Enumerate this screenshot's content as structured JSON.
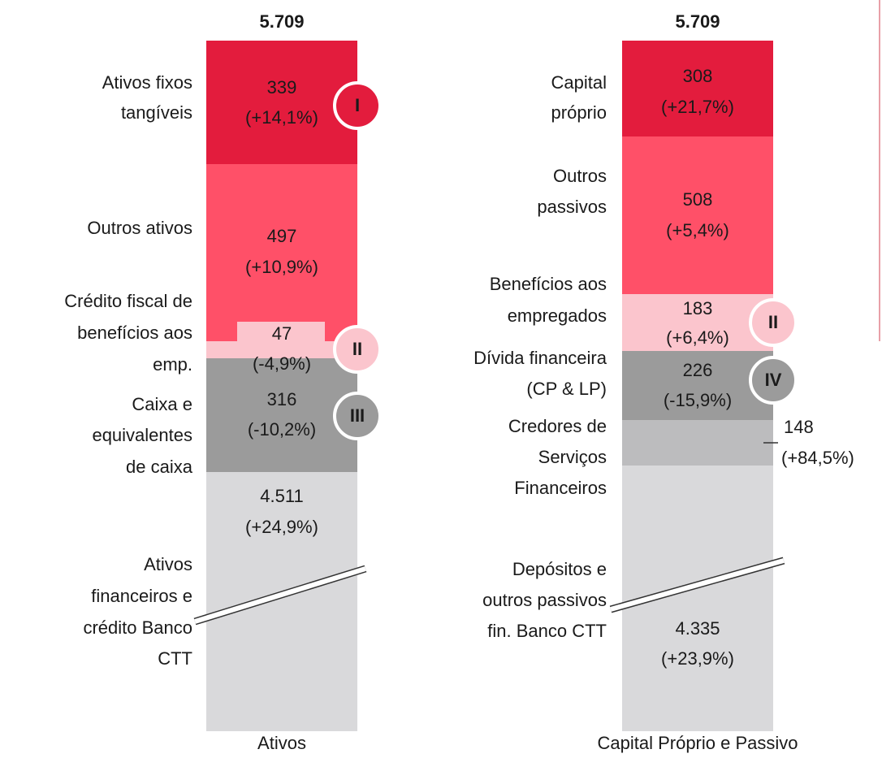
{
  "columns": [
    {
      "total": "5.709",
      "label": "Ativos",
      "segments": [
        {
          "name": [
            "Ativos fixos",
            "tangíveis"
          ],
          "value": "339",
          "change": "(+14,1%)",
          "badge": "I"
        },
        {
          "name": [
            "Outros ativos"
          ],
          "value": "497",
          "change": "(+10,9%)"
        },
        {
          "name": [
            "Crédito fiscal de",
            "benefícios aos",
            "emp."
          ],
          "value": "47",
          "change": "(-4,9%)",
          "badge": "II"
        },
        {
          "name": [
            "Caixa e",
            "equivalentes",
            "de caixa"
          ],
          "value": "316",
          "change": "(-10,2%)",
          "badge": "III"
        },
        {
          "name": [
            "Ativos",
            "financeiros e",
            "crédito Banco",
            "CTT"
          ],
          "value": "4.511",
          "change": "(+24,9%)"
        }
      ]
    },
    {
      "total": "5.709",
      "label": "Capital Próprio e Passivo",
      "segments": [
        {
          "name": [
            "Capital",
            "próprio"
          ],
          "value": "308",
          "change": "(+21,7%)"
        },
        {
          "name": [
            "Outros",
            "passivos"
          ],
          "value": "508",
          "change": "(+5,4%)"
        },
        {
          "name": [
            "Benefícios aos",
            "empregados"
          ],
          "value": "183",
          "change": "(+6,4%)",
          "badge": "II"
        },
        {
          "name": [
            "Dívida financeira",
            "(CP & LP)"
          ],
          "value": "226",
          "change": "(-15,9%)",
          "badge": "IV"
        },
        {
          "name": [
            "Credores de",
            "Serviços",
            "Financeiros"
          ],
          "value": "148",
          "change": "(+84,5%)"
        },
        {
          "name": [
            "Depósitos e",
            "outros passivos",
            "fin. Banco CTT"
          ],
          "value": "4.335",
          "change": "(+23,9%)"
        }
      ]
    }
  ]
}
